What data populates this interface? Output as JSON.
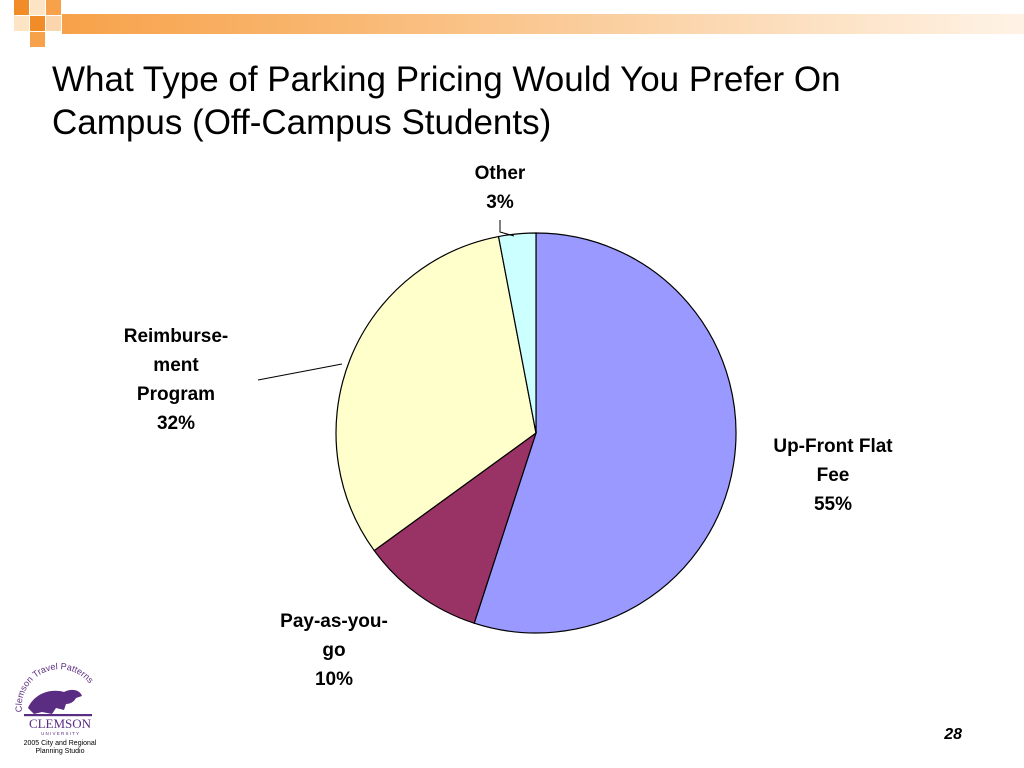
{
  "slide": {
    "title_line1": "What Type of Parking Pricing Would You Prefer On",
    "title_line2": "Campus (Off-Campus Students)",
    "page_number": "28"
  },
  "logo": {
    "arc_text": "Clemson Travel Patterns",
    "name": "CLEMSON",
    "sub": "U N I V E R S I T Y",
    "line1": "2005 City and Regional",
    "line2": "Planning Studio",
    "icon": "tiger-icon"
  },
  "colors": {
    "band_orange": "#f7a24a",
    "band_orange_dark": "#f28c28",
    "band_cream": "#fce4c4",
    "logo_purple": "#5b2d82"
  },
  "chart_data": {
    "type": "pie",
    "title": "",
    "start_angle_deg": 0,
    "direction": "clockwise",
    "slices": [
      {
        "label_lines": [
          "Up-Front Flat",
          "Fee"
        ],
        "pct_label": "55%",
        "value": 55,
        "color": "#9999ff"
      },
      {
        "label_lines": [
          "Pay-as-you-",
          "go"
        ],
        "pct_label": "10%",
        "value": 10,
        "color": "#993366"
      },
      {
        "label_lines": [
          "Reimburse-",
          "ment",
          "Program"
        ],
        "pct_label": "32%",
        "value": 32,
        "color": "#ffffcc"
      },
      {
        "label_lines": [
          "Other"
        ],
        "pct_label": "3%",
        "value": 3,
        "color": "#ccffff"
      }
    ]
  }
}
